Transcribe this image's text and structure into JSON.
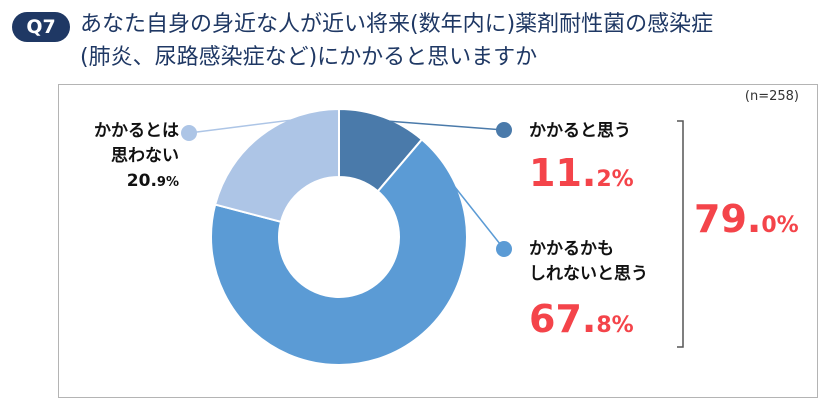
{
  "header": {
    "badge": "Q7",
    "title_line1": "あなた自身の身近な人が近い将来(数年内に)薬剤耐性菌の感染症",
    "title_line2": "(肺炎、尿路感染症など)にかかると思いますか"
  },
  "sample_size": "(n=258)",
  "chart_data": {
    "type": "pie",
    "title": "あなた自身の身近な人が近い将来(数年内に)薬剤耐性菌の感染症(肺炎、尿路感染症など)にかかると思いますか",
    "unit": "%",
    "categories": [
      "かかると思う",
      "かかるかもしれないと思う",
      "かかるとは思わない"
    ],
    "values": [
      11.2,
      67.8,
      20.9
    ],
    "colors": [
      "#4a7aaa",
      "#5b9bd5",
      "#adc5e6"
    ],
    "labels": [
      {
        "lines": [
          "かかると思う"
        ],
        "num": "11.",
        "unit": "2%"
      },
      {
        "lines": [
          "かかるかも",
          "しれないと思う"
        ],
        "num": "67.",
        "unit": "8%"
      },
      {
        "lines": [
          "かかるとは",
          "思わない"
        ],
        "num": "20.",
        "unit": "9%"
      }
    ],
    "bracket_total": {
      "num": "79.",
      "unit": "0%",
      "value": 79.0
    }
  }
}
